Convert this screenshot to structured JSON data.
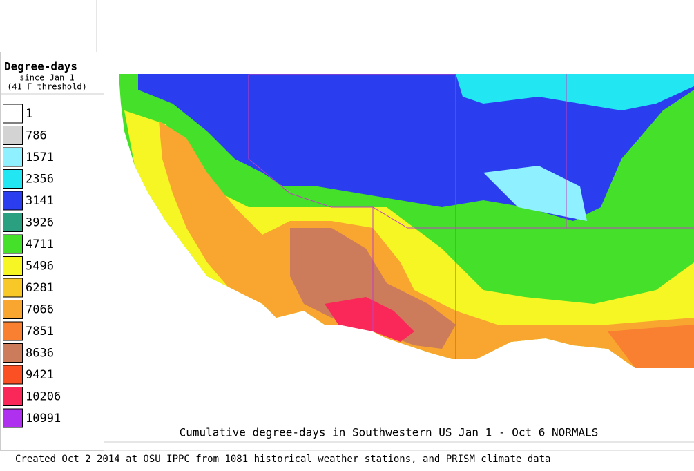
{
  "legend": {
    "title": "Degree-days",
    "subtitle": "since Jan 1",
    "threshold": "(41 F threshold)",
    "items": [
      {
        "label": "1",
        "color": "#ffffff"
      },
      {
        "label": "786",
        "color": "#d3d3d3"
      },
      {
        "label": "1571",
        "color": "#8ff0ff"
      },
      {
        "label": "2356",
        "color": "#22e6f2"
      },
      {
        "label": "3141",
        "color": "#2a3ef0"
      },
      {
        "label": "3926",
        "color": "#2aa080"
      },
      {
        "label": "4711",
        "color": "#44e02a"
      },
      {
        "label": "5496",
        "color": "#f6f624"
      },
      {
        "label": "6281",
        "color": "#f8c828"
      },
      {
        "label": "7066",
        "color": "#f8a630"
      },
      {
        "label": "7851",
        "color": "#f88030"
      },
      {
        "label": "8636",
        "color": "#cc7c5a"
      },
      {
        "label": "9421",
        "color": "#fa5024"
      },
      {
        "label": "10206",
        "color": "#fa2858"
      },
      {
        "label": "10991",
        "color": "#b030f0"
      }
    ]
  },
  "caption": "Cumulative degree-days in Southwestern US Jan 1 - Oct 6 NORMALS",
  "footer": "Created Oct 2 2014 at OSU IPPC from 1081 historical weather stations, and PRISM climate data"
}
